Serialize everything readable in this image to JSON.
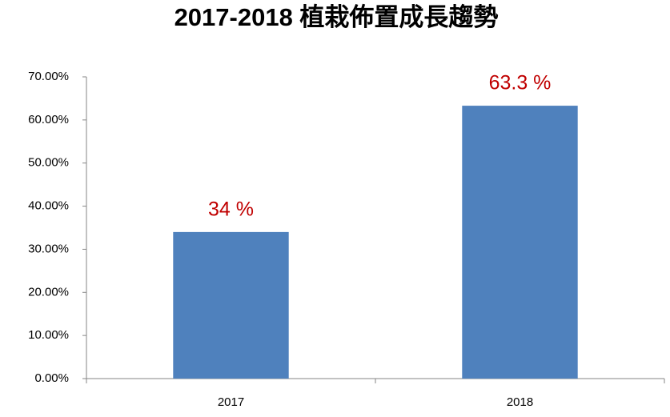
{
  "chart_data": {
    "type": "bar",
    "title": "2017-2018 植栽佈置成長趨勢",
    "categories": [
      "2017",
      "2018"
    ],
    "values": [
      34,
      63.3
    ],
    "value_labels": [
      "34 %",
      "63.3  %"
    ],
    "color": "#4f81bd",
    "label_color": "#c00000",
    "ylim": [
      0,
      70
    ],
    "yticks": [
      {
        "value": 0,
        "label": "0.00%"
      },
      {
        "value": 10,
        "label": "10.00%"
      },
      {
        "value": 20,
        "label": "20.00%"
      },
      {
        "value": 30,
        "label": "30.00%"
      },
      {
        "value": 40,
        "label": "40.00%"
      },
      {
        "value": 50,
        "label": "50.00%"
      },
      {
        "value": 60,
        "label": "60.00%"
      },
      {
        "value": 70,
        "label": "70.00%"
      }
    ],
    "grid": false
  }
}
